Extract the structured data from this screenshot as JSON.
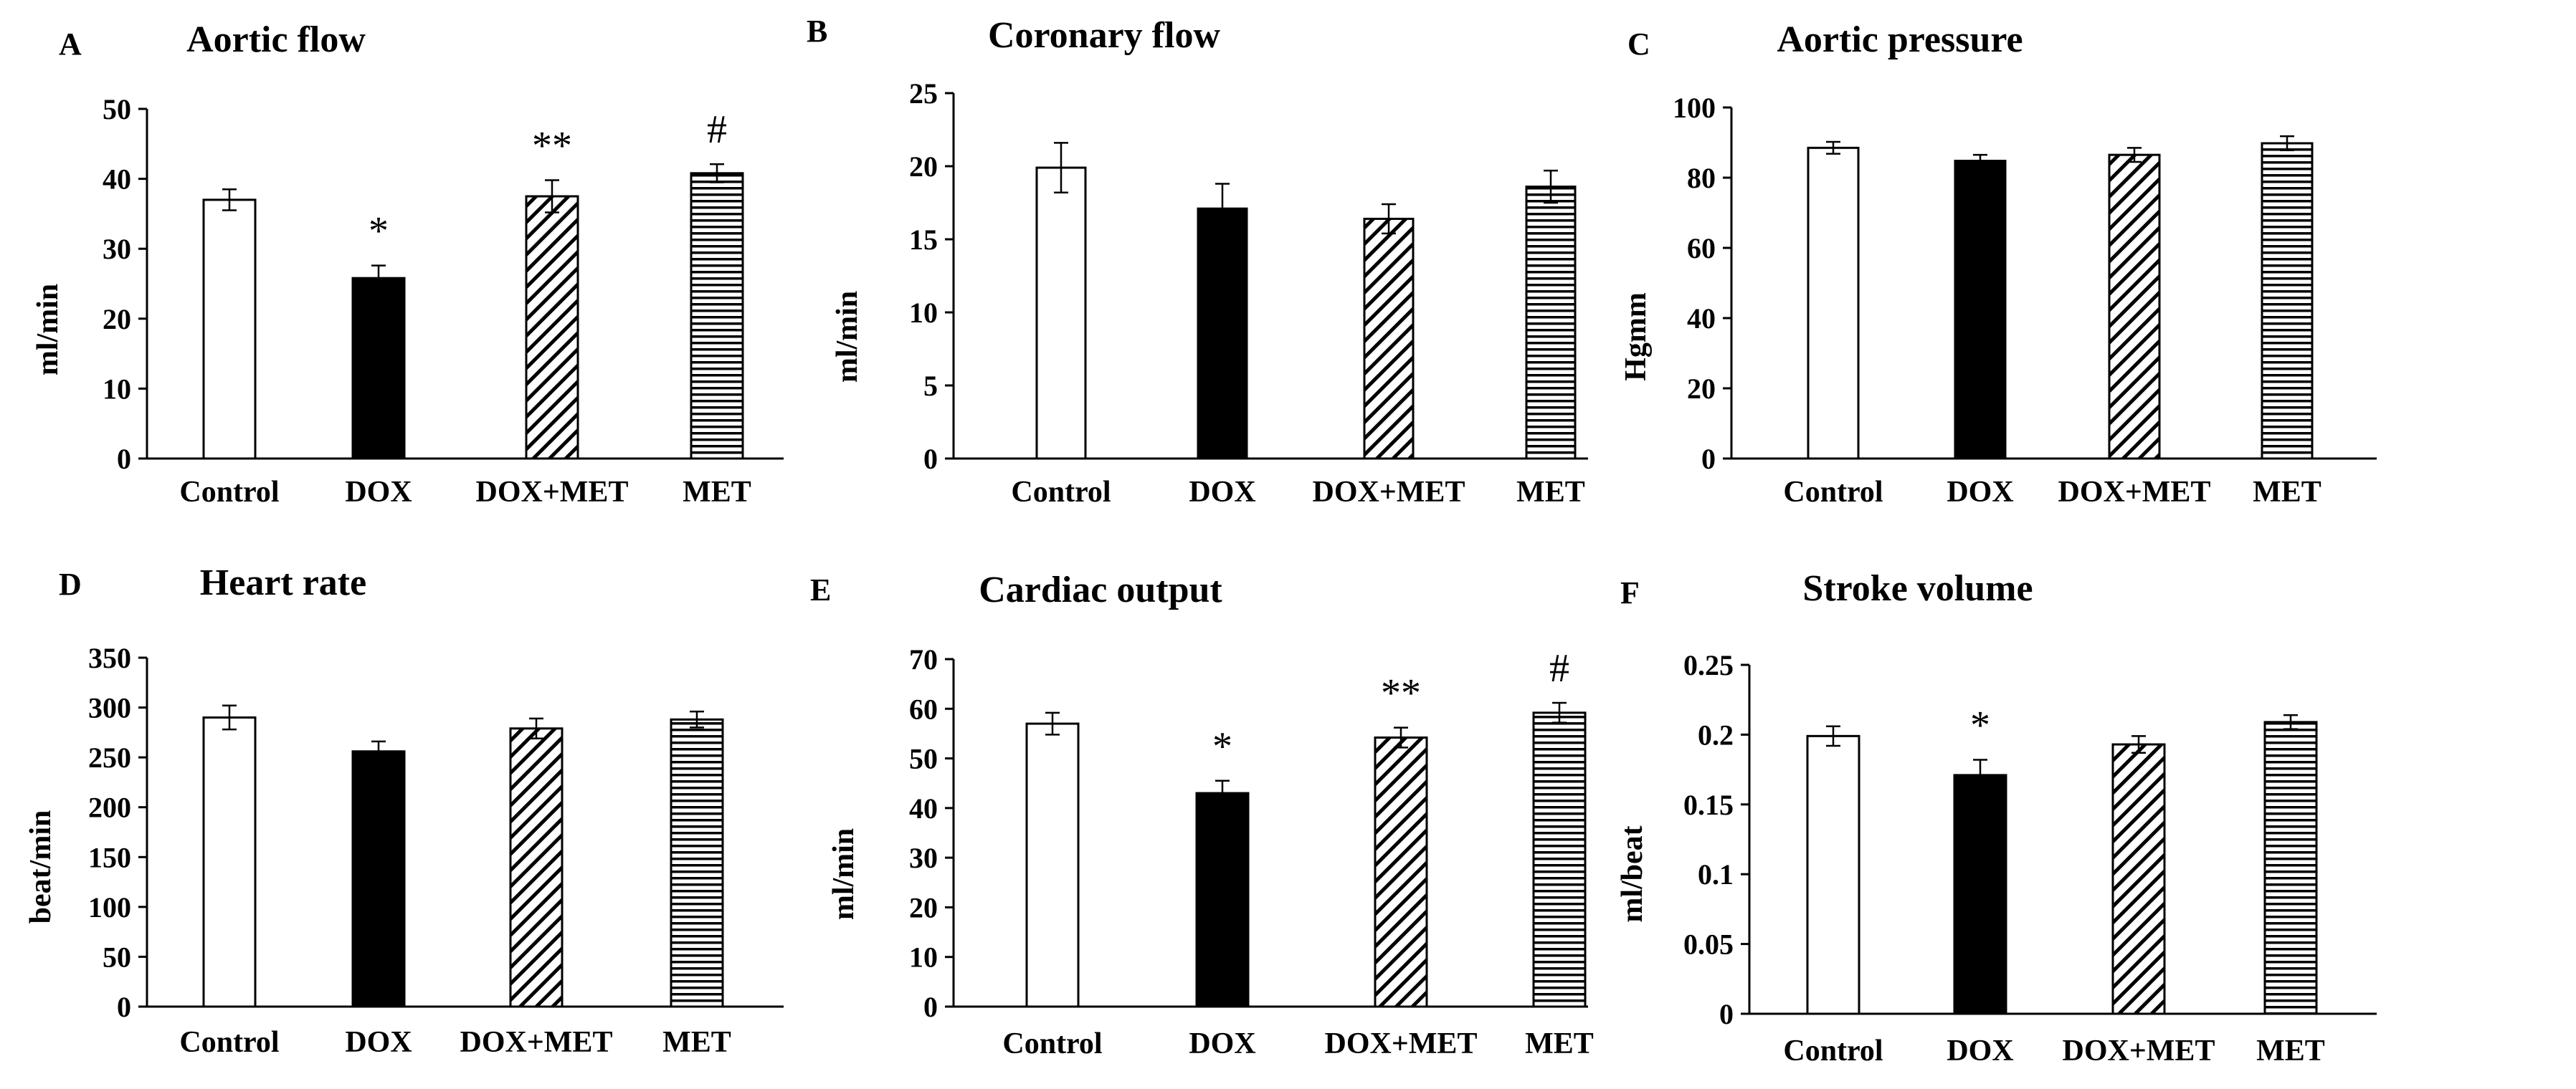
{
  "chart_data": [
    {
      "panel": "A",
      "type": "bar",
      "title": "Aortic flow",
      "ylabel": "ml/min",
      "categories": [
        "Control",
        "DOX",
        "DOX+MET",
        "MET"
      ],
      "values": [
        37,
        25.8,
        37.5,
        40.8
      ],
      "errors": [
        1.5,
        1.8,
        2.3,
        1.3
      ],
      "significance": [
        "",
        "*",
        "**",
        "#"
      ],
      "ylim": [
        0,
        50
      ],
      "yticks": [
        0,
        10,
        20,
        30,
        40,
        50
      ],
      "ytick_labels": [
        "0",
        "10",
        "20",
        "30",
        "40",
        "50"
      ],
      "patterns": [
        "white",
        "black",
        "diagonal",
        "horizontal"
      ]
    },
    {
      "panel": "B",
      "type": "bar",
      "title": "Coronary flow",
      "ylabel": "ml/min",
      "categories": [
        "Control",
        "DOX",
        "DOX+MET",
        "MET"
      ],
      "values": [
        19.9,
        17.1,
        16.4,
        18.6
      ],
      "errors": [
        1.7,
        1.7,
        1.0,
        1.1
      ],
      "significance": [
        "",
        "",
        "",
        ""
      ],
      "ylim": [
        0,
        25
      ],
      "yticks": [
        0,
        5,
        10,
        15,
        20,
        25
      ],
      "ytick_labels": [
        "0",
        "5",
        "10",
        "15",
        "20",
        "25"
      ],
      "patterns": [
        "white",
        "black",
        "diagonal",
        "horizontal"
      ]
    },
    {
      "panel": "C",
      "type": "bar",
      "title": "Aortic pressure",
      "ylabel": "Hgmm",
      "categories": [
        "Control",
        "DOX",
        "DOX+MET",
        "MET"
      ],
      "values": [
        88.5,
        84.8,
        86.5,
        89.8
      ],
      "errors": [
        1.7,
        1.7,
        2.0,
        2.0
      ],
      "significance": [
        "",
        "",
        "",
        ""
      ],
      "ylim": [
        0,
        100
      ],
      "yticks": [
        0,
        20,
        40,
        60,
        80,
        100
      ],
      "ytick_labels": [
        "0",
        "20",
        "40",
        "60",
        "80",
        "100"
      ],
      "patterns": [
        "white",
        "black",
        "diagonal",
        "horizontal"
      ]
    },
    {
      "panel": "D",
      "type": "bar",
      "title": "Heart rate",
      "ylabel": "beat/min",
      "categories": [
        "Control",
        "DOX",
        "DOX+MET",
        "MET"
      ],
      "values": [
        290,
        256,
        279,
        288
      ],
      "errors": [
        12,
        10,
        10,
        8
      ],
      "significance": [
        "",
        "",
        "",
        ""
      ],
      "ylim": [
        0,
        350
      ],
      "yticks": [
        0,
        50,
        100,
        150,
        200,
        250,
        300,
        350
      ],
      "ytick_labels": [
        "0",
        "50",
        "100",
        "150",
        "200",
        "250",
        "300",
        "350"
      ],
      "patterns": [
        "white",
        "black",
        "diagonal",
        "horizontal"
      ]
    },
    {
      "panel": "E",
      "type": "bar",
      "title": "Cardiac output",
      "ylabel": "ml/min",
      "categories": [
        "Control",
        "DOX",
        "DOX+MET",
        "MET"
      ],
      "values": [
        57,
        43,
        54.2,
        59.2
      ],
      "errors": [
        2.2,
        2.5,
        2.0,
        2.0
      ],
      "significance": [
        "",
        "*",
        "**",
        "#"
      ],
      "ylim": [
        0,
        70
      ],
      "yticks": [
        0,
        10,
        20,
        30,
        40,
        50,
        60,
        70
      ],
      "ytick_labels": [
        "0",
        "10",
        "20",
        "30",
        "40",
        "50",
        "60",
        "70"
      ],
      "patterns": [
        "white",
        "black",
        "diagonal",
        "horizontal"
      ]
    },
    {
      "panel": "F",
      "type": "bar",
      "title": "Stroke volume",
      "ylabel": "ml/beat",
      "categories": [
        "Control",
        "DOX",
        "DOX+MET",
        "MET"
      ],
      "values": [
        0.199,
        0.171,
        0.193,
        0.209
      ],
      "errors": [
        0.007,
        0.011,
        0.006,
        0.005
      ],
      "significance": [
        "",
        "*",
        "",
        ""
      ],
      "ylim": [
        0,
        0.25
      ],
      "yticks": [
        0,
        0.05,
        0.1,
        0.15,
        0.2,
        0.25
      ],
      "ytick_labels": [
        "0",
        "0.05",
        "0.1",
        "0.15",
        "0.2",
        "0.25"
      ],
      "patterns": [
        "white",
        "black",
        "diagonal",
        "horizontal"
      ]
    }
  ]
}
